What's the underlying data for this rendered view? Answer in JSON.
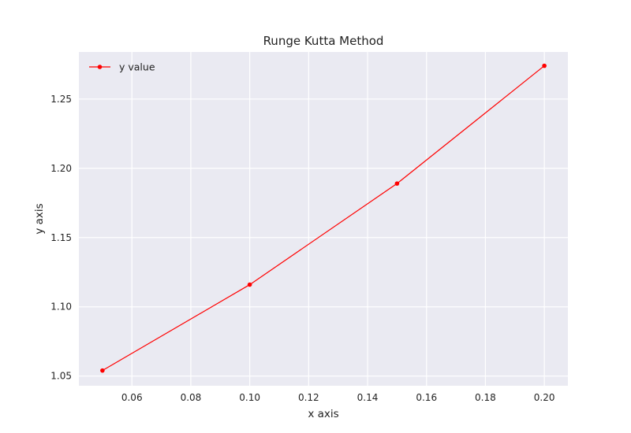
{
  "chart_data": {
    "type": "line",
    "title": "Runge Kutta Method",
    "xlabel": "x axis",
    "ylabel": "y axis",
    "x": [
      0.05,
      0.1,
      0.15,
      0.2
    ],
    "series": [
      {
        "name": "y value",
        "values": [
          1.054,
          1.116,
          1.189,
          1.274
        ],
        "color": "#ff0000"
      }
    ],
    "xlim": [
      0.042,
      0.208
    ],
    "ylim": [
      1.043,
      1.284
    ],
    "xticks": [
      "0.06",
      "0.08",
      "0.10",
      "0.12",
      "0.14",
      "0.16",
      "0.18",
      "0.20"
    ],
    "yticks": [
      "1.05",
      "1.10",
      "1.15",
      "1.20",
      "1.25"
    ],
    "grid": true,
    "legend_position": "top-left",
    "colors": {
      "plot_background": "#eaeaf2",
      "grid": "#ffffff",
      "line": "#ff0000"
    }
  }
}
